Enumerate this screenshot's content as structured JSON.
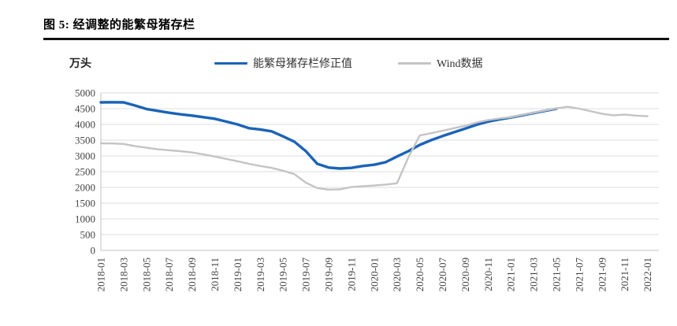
{
  "figure": {
    "title": "图 5: 经调整的能繁母猪存栏",
    "y_unit_label": "万头"
  },
  "legend": {
    "items": [
      {
        "label": "能繁母猪存栏修正值",
        "color": "#1B63B8"
      },
      {
        "label": "Wind数据",
        "color": "#C4C4C4"
      }
    ]
  },
  "chart_data": {
    "type": "line",
    "title": "图 5: 经调整的能繁母猪存栏",
    "ylabel": "万头",
    "ylim": [
      0,
      5000
    ],
    "ytick_step": 500,
    "grid": true,
    "legend_position": "top",
    "x_start": "2018-01",
    "x_interval_months": 1,
    "x_tick_labels": [
      "2018-01",
      "2018-03",
      "2018-05",
      "2018-07",
      "2018-09",
      "2018-11",
      "2019-01",
      "2019-03",
      "2019-05",
      "2019-07",
      "2019-09",
      "2019-11",
      "2020-01",
      "2020-03",
      "2020-05",
      "2020-07",
      "2020-09",
      "2020-11",
      "2021-01",
      "2021-03",
      "2021-05",
      "2021-07",
      "2021-09",
      "2021-11",
      "2022-01"
    ],
    "series": [
      {
        "name": "能繁母猪存栏修正值",
        "color": "#1B63B8",
        "width": 3.4,
        "values": [
          4700,
          4705,
          4700,
          4600,
          4490,
          4430,
          4370,
          4320,
          4280,
          4230,
          4180,
          4090,
          4000,
          3880,
          3840,
          3780,
          3620,
          3450,
          3150,
          2750,
          2630,
          2600,
          2620,
          2680,
          2720,
          2800,
          2980,
          3150,
          3350,
          3500,
          3630,
          3750,
          3870,
          3990,
          4090,
          4160,
          4220,
          4290,
          4360,
          4430,
          4500,
          null,
          null,
          null,
          null,
          null,
          null,
          null,
          null
        ]
      },
      {
        "name": "Wind数据",
        "color": "#C4C4C4",
        "width": 2.4,
        "values": [
          3400,
          3395,
          3380,
          3310,
          3260,
          3210,
          3180,
          3150,
          3110,
          3050,
          2980,
          2905,
          2830,
          2750,
          2680,
          2620,
          2530,
          2420,
          2150,
          1980,
          1930,
          1940,
          2010,
          2040,
          2060,
          2090,
          2130,
          2950,
          3650,
          3720,
          3800,
          3880,
          3960,
          4060,
          4140,
          4190,
          4230,
          4300,
          4370,
          4440,
          4510,
          4560,
          4500,
          4420,
          4340,
          4290,
          4310,
          4280,
          4260
        ]
      }
    ]
  }
}
